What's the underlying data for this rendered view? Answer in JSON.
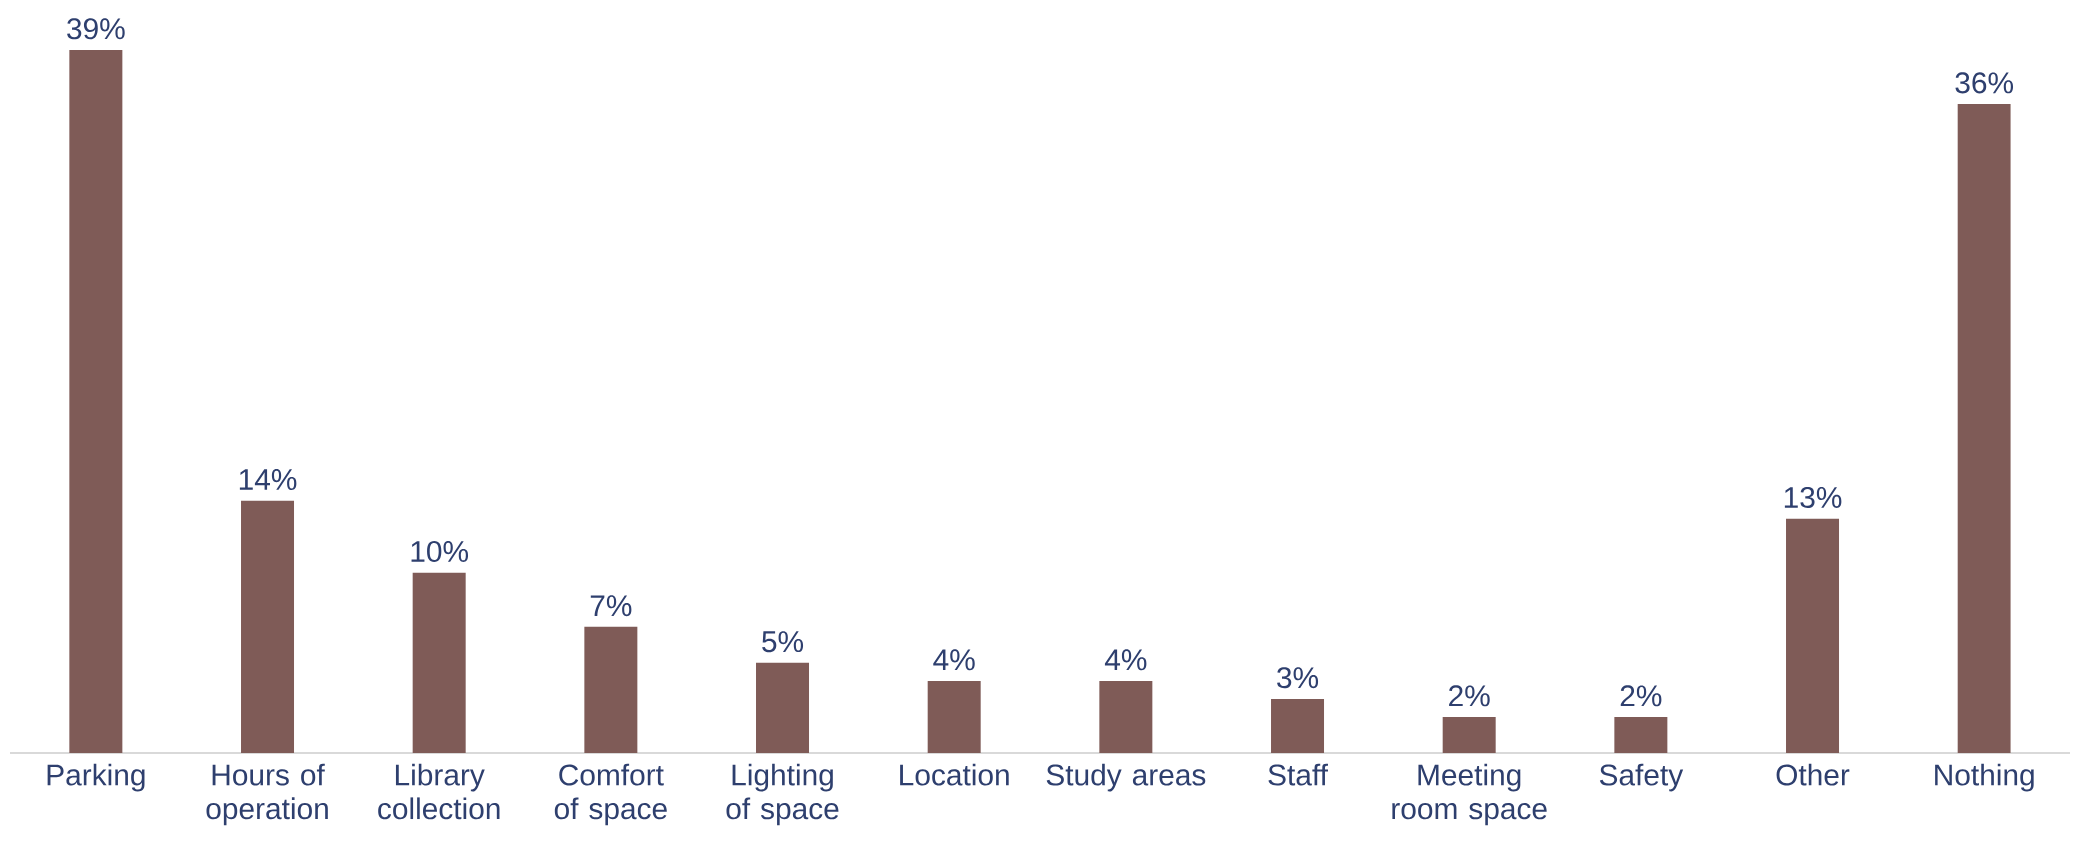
{
  "chart_data": {
    "type": "bar",
    "categories": [
      "Parking",
      "Hours of operation",
      "Library collection",
      "Comfort of space",
      "Lighting of space",
      "Location",
      "Study areas",
      "Staff",
      "Meeting room space",
      "Safety",
      "Other",
      "Nothing"
    ],
    "values": [
      39,
      14,
      10,
      7,
      5,
      4,
      4,
      3,
      2,
      2,
      13,
      36
    ],
    "value_labels": [
      "39%",
      "14%",
      "10%",
      "7%",
      "5%",
      "4%",
      "4%",
      "3%",
      "2%",
      "2%",
      "13%",
      "36%"
    ],
    "color": "#7f5b57"
  }
}
